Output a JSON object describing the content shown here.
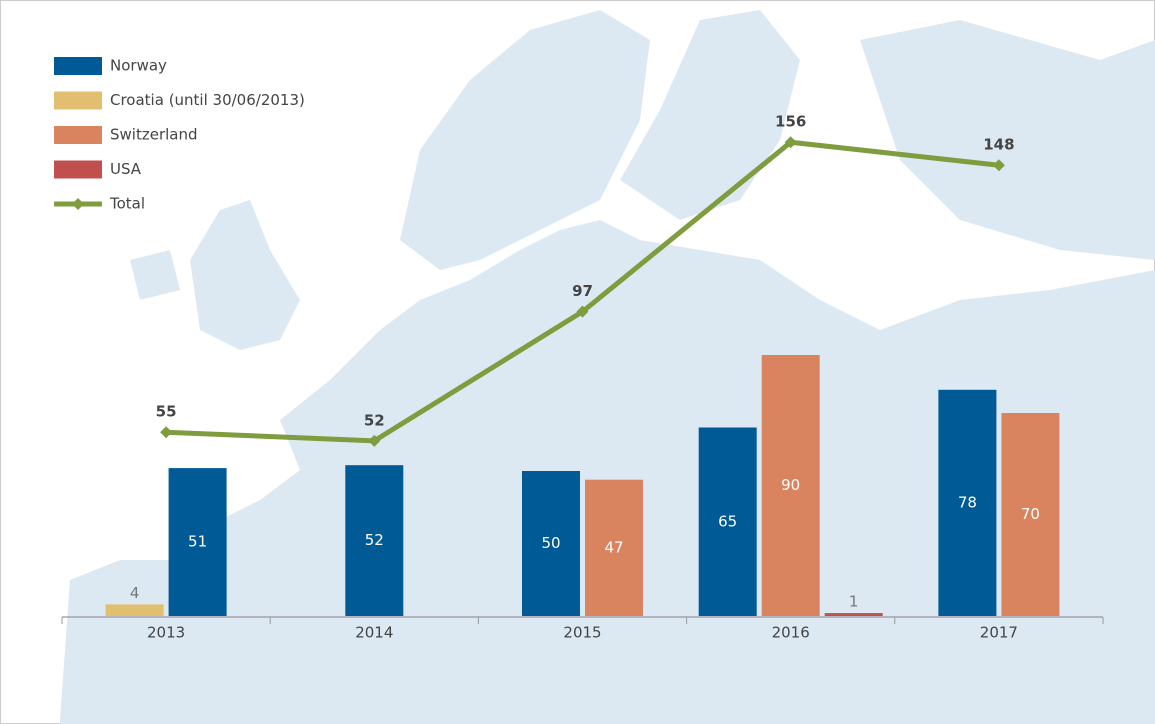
{
  "chart_data": {
    "type": "bar",
    "categories": [
      "2013",
      "2014",
      "2015",
      "2016",
      "2017"
    ],
    "series": [
      {
        "name": "Norway",
        "color": "#005a96",
        "values": [
          51,
          52,
          50,
          65,
          78
        ]
      },
      {
        "name": "Croatia (until 30/06/2013)",
        "color": "#e2bf70",
        "values": [
          4,
          null,
          null,
          null,
          null
        ]
      },
      {
        "name": "Switzerland",
        "color": "#d9845f",
        "values": [
          null,
          null,
          47,
          90,
          70
        ]
      },
      {
        "name": "USA",
        "color": "#c0504d",
        "values": [
          null,
          null,
          null,
          1,
          null
        ]
      },
      {
        "name": "Total",
        "color": "#7f9c3f",
        "type": "line",
        "axis": "y2",
        "values": [
          55,
          52,
          97,
          156,
          148
        ]
      }
    ],
    "ylim": [
      0,
      200
    ],
    "y2lim": [
      -9,
      193
    ],
    "grid": false
  }
}
